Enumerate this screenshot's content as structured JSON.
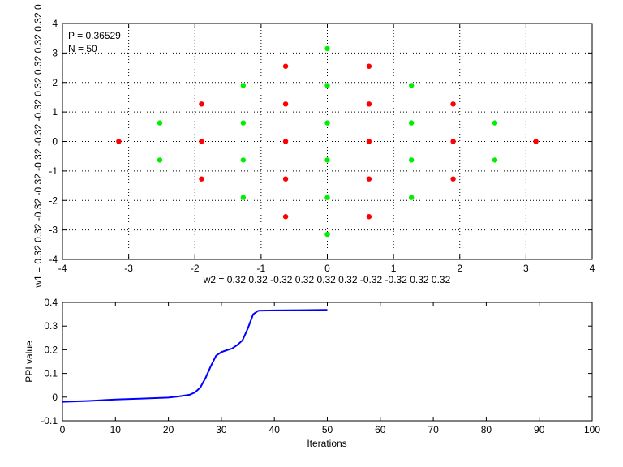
{
  "chart_data": [
    {
      "type": "scatter",
      "title": "",
      "xlabel": "w2 = 0.32  0.32  -0.32  0.32  0.32  0.32  -0.32  -0.32  0.32  0.32",
      "ylabel": "w1 = 0.32  0.32  -0.32  -0.32  -0.32  -0.32  -0.32  0.32  0.32  0.32  0.32  0",
      "xlim": [
        -4,
        4
      ],
      "ylim": [
        -4,
        4
      ],
      "xticks": [
        "-4",
        "-3",
        "-2",
        "-1",
        "0",
        "1",
        "2",
        "3",
        "4"
      ],
      "yticks": [
        "-4",
        "-3",
        "-2",
        "-1",
        "0",
        "1",
        "2",
        "3",
        "4"
      ],
      "grid": true,
      "annotations": [
        "P = 0.36529",
        "N = 50"
      ],
      "colors": {
        "red": "#ff0000",
        "green": "#00ee00"
      },
      "series": [
        {
          "color": "red",
          "points": [
            [
              -3.15,
              0
            ],
            [
              -1.9,
              1.27
            ],
            [
              -1.9,
              0
            ],
            [
              -1.9,
              -1.27
            ],
            [
              -0.63,
              2.55
            ],
            [
              -0.63,
              1.27
            ],
            [
              -0.63,
              0
            ],
            [
              -0.63,
              -1.27
            ],
            [
              -0.63,
              -2.55
            ],
            [
              0.63,
              2.55
            ],
            [
              0.63,
              1.27
            ],
            [
              0.63,
              0
            ],
            [
              0.63,
              -1.27
            ],
            [
              0.63,
              -2.55
            ],
            [
              1.9,
              1.27
            ],
            [
              1.9,
              0
            ],
            [
              1.9,
              -1.27
            ],
            [
              3.15,
              0
            ]
          ]
        },
        {
          "color": "green",
          "points": [
            [
              -2.53,
              0.63
            ],
            [
              -2.53,
              -0.63
            ],
            [
              -1.27,
              1.9
            ],
            [
              -1.27,
              0.63
            ],
            [
              -1.27,
              -0.63
            ],
            [
              -1.27,
              -1.9
            ],
            [
              0,
              3.15
            ],
            [
              0,
              1.9
            ],
            [
              0,
              0.63
            ],
            [
              0,
              -0.63
            ],
            [
              0,
              -1.9
            ],
            [
              0,
              -3.15
            ],
            [
              1.27,
              1.9
            ],
            [
              1.27,
              0.63
            ],
            [
              1.27,
              -0.63
            ],
            [
              1.27,
              -1.9
            ],
            [
              2.53,
              0.63
            ],
            [
              2.53,
              -0.63
            ]
          ]
        }
      ]
    },
    {
      "type": "line",
      "title": "",
      "xlabel": "Iterations",
      "ylabel": "PPI value",
      "xlim": [
        0,
        100
      ],
      "ylim": [
        -0.1,
        0.4
      ],
      "xticks": [
        "0",
        "10",
        "20",
        "30",
        "40",
        "50",
        "60",
        "70",
        "80",
        "90",
        "100"
      ],
      "yticks": [
        "-0.1",
        "0",
        "0.1",
        "0.2",
        "0.3",
        "0.4"
      ],
      "grid": false,
      "color": "#0000ff",
      "x": [
        0,
        5,
        10,
        15,
        20,
        22,
        24,
        25,
        26,
        27,
        28,
        29,
        30,
        31,
        32,
        33,
        34,
        35,
        36,
        37,
        40,
        45,
        50
      ],
      "y": [
        -0.02,
        -0.016,
        -0.01,
        -0.006,
        -0.002,
        0.003,
        0.01,
        0.02,
        0.04,
        0.08,
        0.13,
        0.175,
        0.19,
        0.198,
        0.205,
        0.22,
        0.24,
        0.29,
        0.35,
        0.365,
        0.366,
        0.367,
        0.368
      ]
    }
  ]
}
